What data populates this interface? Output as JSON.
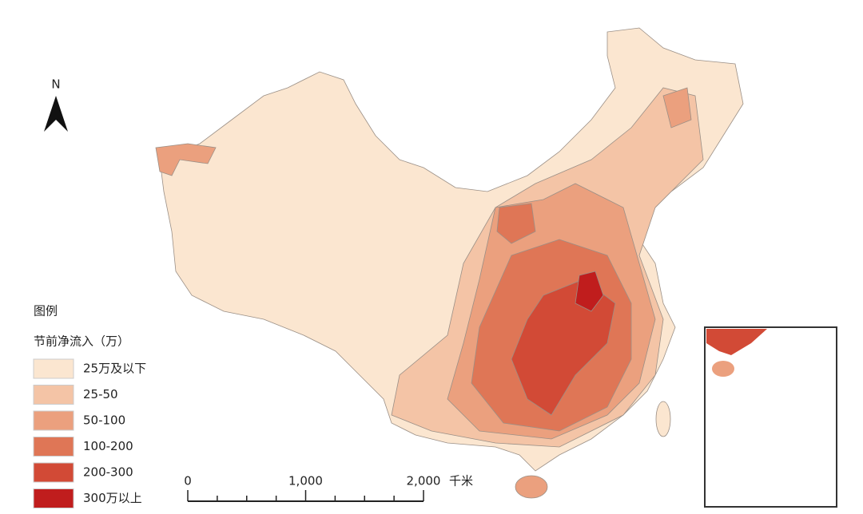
{
  "north": "N",
  "legend": {
    "title": "图例",
    "subtitle": "节前净流入（万）",
    "items": [
      {
        "label": "25万及以下",
        "color": "#fbe6d0"
      },
      {
        "label": "25-50",
        "color": "#f4c4a6"
      },
      {
        "label": "50-100",
        "color": "#eba07e"
      },
      {
        "label": "100-200",
        "color": "#df7656"
      },
      {
        "label": "200-300",
        "color": "#d24a36"
      },
      {
        "label": "300万以上",
        "color": "#c01d1d"
      }
    ]
  },
  "scale_bar": {
    "labels": [
      "0",
      "1,000",
      "2,000"
    ],
    "unit": "千米"
  }
}
